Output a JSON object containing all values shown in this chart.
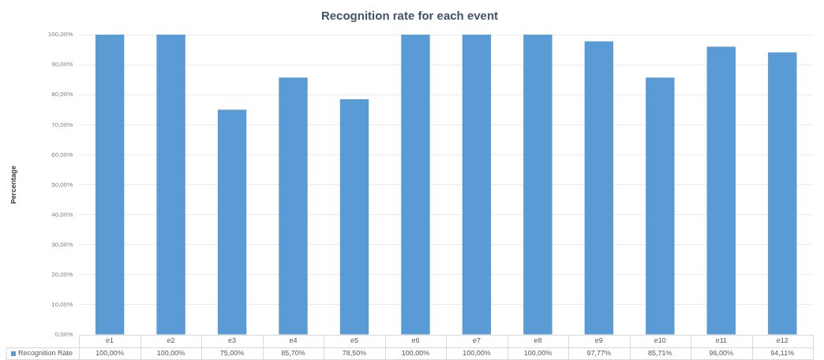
{
  "chart_data": {
    "type": "bar",
    "title": "Recognition rate for each event",
    "ylabel": "Percentage",
    "categories": [
      "e1",
      "e2",
      "e3",
      "e4",
      "e5",
      "e6",
      "e7",
      "e8",
      "e9",
      "e10",
      "e11",
      "e12"
    ],
    "series": [
      {
        "name": "Recognition Rate",
        "color": "#5b9bd5",
        "values": [
          100,
          100,
          75,
          85.7,
          78.5,
          100,
          100,
          100,
          97.77,
          85.71,
          96,
          94.11
        ],
        "value_labels": [
          "100,00%",
          "100,00%",
          "75,00%",
          "85,70%",
          "78,50%",
          "100,00%",
          "100,00%",
          "100,00%",
          "97,77%",
          "85,71%",
          "96,00%",
          "94,11%"
        ]
      }
    ],
    "ylim": [
      0,
      100
    ],
    "yticks": [
      {
        "value": 0,
        "label": "0,00%"
      },
      {
        "value": 10,
        "label": "10,00%"
      },
      {
        "value": 20,
        "label": "20,00%"
      },
      {
        "value": 30,
        "label": "30,00%"
      },
      {
        "value": 40,
        "label": "40,00%"
      },
      {
        "value": 50,
        "label": "50,00%"
      },
      {
        "value": 60,
        "label": "60,00%"
      },
      {
        "value": 70,
        "label": "70,00%"
      },
      {
        "value": 80,
        "label": "80,00%"
      },
      {
        "value": 90,
        "label": "90,00%"
      },
      {
        "value": 100,
        "label": "100,00%"
      }
    ],
    "grid": "y",
    "legend": "bottom"
  }
}
